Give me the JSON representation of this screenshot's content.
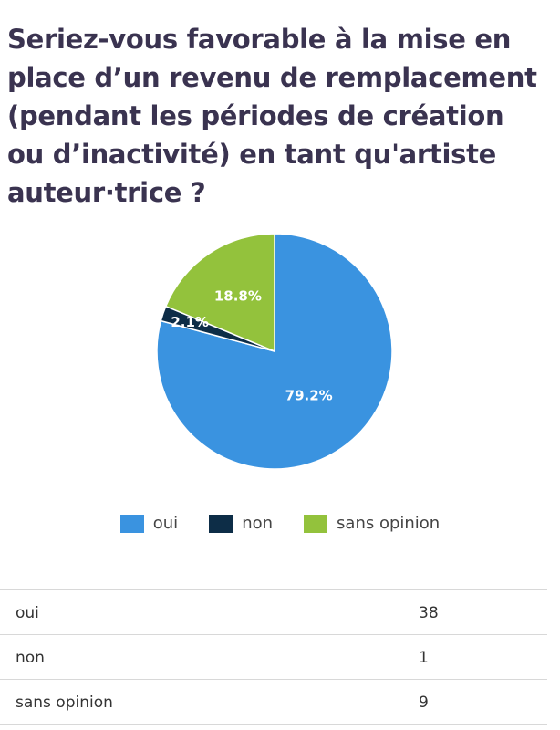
{
  "chart_data": {
    "type": "pie",
    "title": "Seriez-vous favorable à la mise en place d’un revenu de remplacement (pendant les périodes de création ou d’inactivité) en tant qu'artiste auteur·trice ?",
    "categories": [
      "oui",
      "non",
      "sans opinion"
    ],
    "values": [
      38,
      1,
      9
    ],
    "percent_labels": [
      "79.2%",
      "2.1%",
      "18.8%"
    ],
    "colors": [
      "#3a93e0",
      "#0d2d47",
      "#93c23c"
    ],
    "legend_position": "bottom"
  },
  "table": {
    "rows": [
      {
        "label": "oui",
        "value": "38"
      },
      {
        "label": "non",
        "value": "1"
      },
      {
        "label": "sans opinion",
        "value": "9"
      }
    ]
  }
}
